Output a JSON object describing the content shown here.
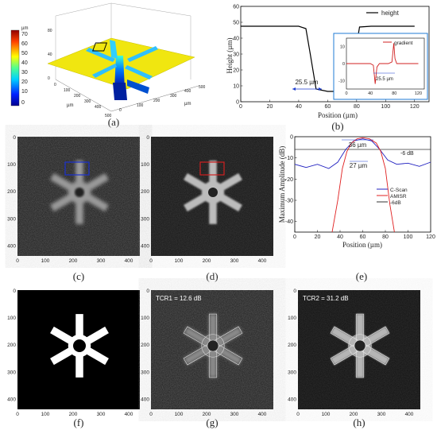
{
  "panels": {
    "a": {
      "caption": "(a)",
      "colorbar_unit": "µm",
      "colorbar_ticks": [
        "70",
        "60",
        "50",
        "40",
        "30",
        "20",
        "10",
        "0"
      ],
      "axis_ticks_x": [
        "0",
        "100",
        "200",
        "300",
        "400",
        "500"
      ],
      "axis_ticks_y": [
        "0",
        "100",
        "200",
        "300",
        "400",
        "500"
      ],
      "axis_label": "µm",
      "z_ticks": [
        "0",
        "40",
        "80"
      ]
    },
    "b": {
      "caption": "(b)",
      "legend": "height",
      "xlabel": "Position (µm)",
      "ylabel": "Height (µm)",
      "annotation": "25.5 µm",
      "inset_legend": "gradient",
      "inset_annotation": "25.5 µm",
      "inset_x_ticks": [
        "0",
        "40",
        "80",
        "120"
      ],
      "inset_y_ticks": [
        "10",
        "0",
        "-10"
      ]
    },
    "c": {
      "caption": "(c)"
    },
    "d": {
      "caption": "(d)"
    },
    "e": {
      "caption": "(e)",
      "xlabel": "Position (µm)",
      "ylabel": "Maximum Amplitude (dB)",
      "width_top": "36 µm",
      "width_bottom": "27 µm",
      "db_label": "-6 dB",
      "legend": [
        "C-Scan",
        "AMISR",
        "-6dB"
      ]
    },
    "f": {
      "caption": "(f)"
    },
    "g": {
      "caption": "(g)",
      "label": "TCR1 = 12.6 dB"
    },
    "h": {
      "caption": "(h)",
      "label": "TCR2 = 31.2 dB"
    },
    "image_ticks": [
      "0",
      "100",
      "200",
      "300",
      "400"
    ],
    "image_y_ticks": [
      "0",
      "100",
      "200",
      "300",
      "400"
    ]
  },
  "chart_data": [
    {
      "type": "line",
      "panel": "b",
      "xlabel": "Position (µm)",
      "ylabel": "Height (µm)",
      "xlim": [
        0,
        130
      ],
      "ylim": [
        0,
        60
      ],
      "x_ticks": [
        0,
        20,
        40,
        60,
        80,
        100,
        120
      ],
      "y_ticks": [
        0,
        10,
        20,
        30,
        40,
        50,
        60
      ],
      "series": [
        {
          "name": "height",
          "x": [
            0,
            40,
            45,
            48,
            52,
            60,
            70,
            76,
            79,
            82,
            90,
            120
          ],
          "y": [
            47.5,
            47.5,
            46,
            30,
            8,
            6.5,
            6.5,
            7.5,
            30,
            47,
            47.5,
            47.5
          ]
        }
      ]
    },
    {
      "type": "line",
      "panel": "b-inset",
      "xlim": [
        0,
        130
      ],
      "ylim": [
        -15,
        15
      ],
      "series": [
        {
          "name": "gradient",
          "x": [
            0,
            40,
            45,
            48,
            51,
            55,
            70,
            76,
            79,
            81,
            84,
            90,
            120
          ],
          "y": [
            0,
            0,
            -1,
            -12,
            -2,
            0,
            0,
            1,
            12,
            3,
            0,
            0,
            0
          ]
        }
      ]
    },
    {
      "type": "line",
      "panel": "e",
      "xlabel": "Position (µm)",
      "ylabel": "Maximum Amplitude (dB)",
      "xlim": [
        0,
        120
      ],
      "ylim": [
        -45,
        0
      ],
      "x_ticks": [
        0,
        20,
        40,
        60,
        80,
        100,
        120
      ],
      "y_ticks": [
        0,
        -10,
        -20,
        -30,
        -40
      ],
      "series": [
        {
          "name": "C-Scan",
          "x": [
            0,
            10,
            20,
            30,
            38,
            45,
            52,
            60,
            68,
            75,
            82,
            90,
            100,
            110,
            120
          ],
          "y": [
            -13,
            -14.5,
            -13,
            -15,
            -12,
            -6,
            -2,
            -1,
            -2,
            -6,
            -11,
            -13,
            -12.5,
            -14,
            -12
          ]
        },
        {
          "name": "AMISR",
          "x": [
            33,
            38,
            42,
            46,
            50,
            55,
            60,
            66,
            72,
            76,
            80,
            84,
            88
          ],
          "y": [
            -45,
            -30,
            -15,
            -7,
            -3,
            -1,
            -0.5,
            -1,
            -3,
            -7,
            -15,
            -32,
            -45
          ]
        },
        {
          "name": "-6dB",
          "x": [
            0,
            120
          ],
          "y": [
            -6,
            -6
          ]
        }
      ]
    }
  ]
}
